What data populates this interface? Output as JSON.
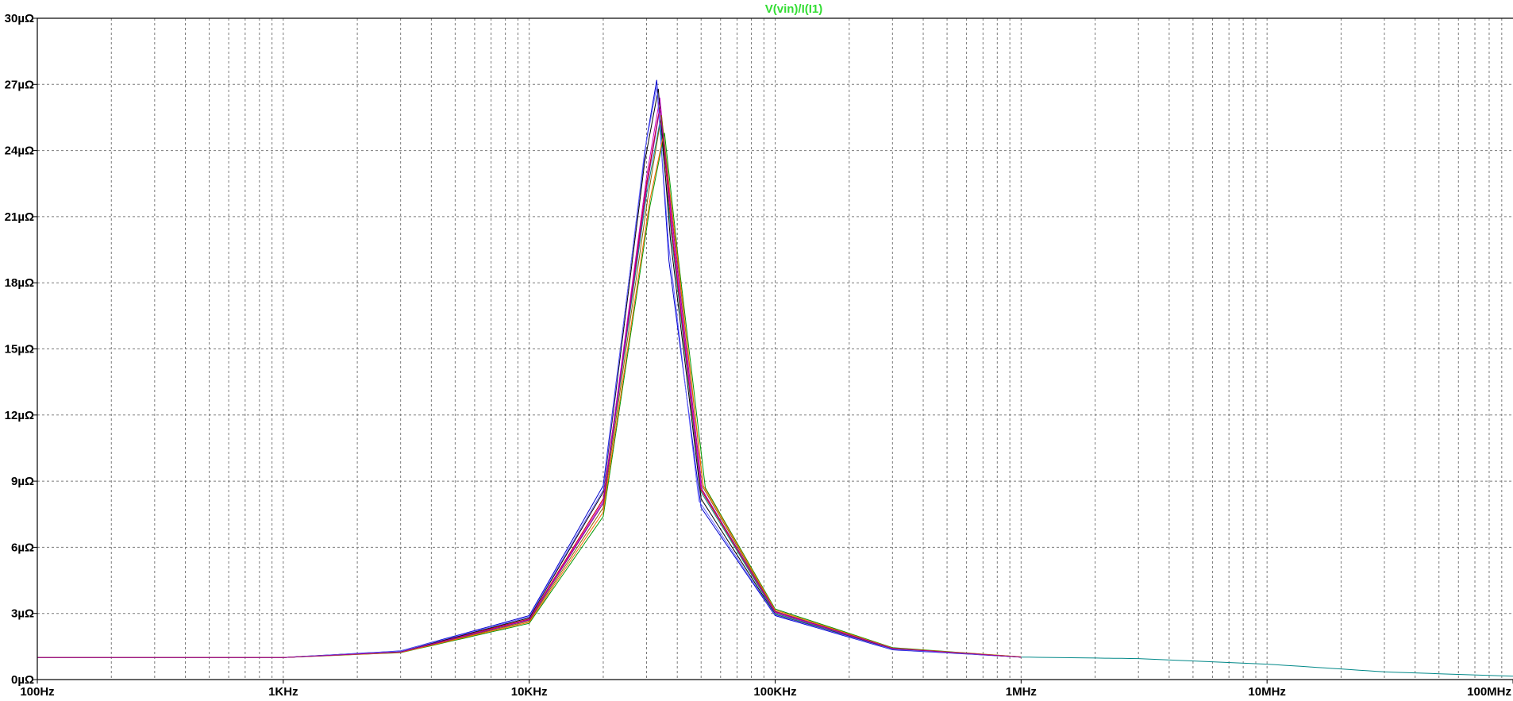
{
  "chart_data": {
    "type": "line",
    "title": "V(vin)/I(I1)",
    "x_scale": "log",
    "xlim": [
      100,
      100000000
    ],
    "ylim": [
      0,
      30
    ],
    "y_unit": "µΩ",
    "x_ticks": [
      {
        "value": 100,
        "label": "100Hz"
      },
      {
        "value": 1000,
        "label": "1KHz"
      },
      {
        "value": 10000,
        "label": "10KHz"
      },
      {
        "value": 100000,
        "label": "100KHz"
      },
      {
        "value": 1000000,
        "label": "1MHz"
      },
      {
        "value": 10000000,
        "label": "10MHz"
      },
      {
        "value": 100000000,
        "label": "100MHz"
      }
    ],
    "y_ticks": [
      {
        "value": 0,
        "label": "0µΩ"
      },
      {
        "value": 3,
        "label": "3µΩ"
      },
      {
        "value": 6,
        "label": "6µΩ"
      },
      {
        "value": 9,
        "label": "9µΩ"
      },
      {
        "value": 12,
        "label": "12µΩ"
      },
      {
        "value": 15,
        "label": "15µΩ"
      },
      {
        "value": 18,
        "label": "18µΩ"
      },
      {
        "value": 21,
        "label": "21µΩ"
      },
      {
        "value": 24,
        "label": "24µΩ"
      },
      {
        "value": 27,
        "label": "27µΩ"
      },
      {
        "value": 30,
        "label": "30µΩ"
      }
    ],
    "grid": true,
    "title_color": "#33dd33",
    "colors": [
      "#0000cc",
      "#cc0000",
      "#009900",
      "#cc00cc",
      "#008888",
      "#886600",
      "#000000",
      "#6666ff",
      "#ff6600",
      "#990099"
    ],
    "series": [
      {
        "color": "#008888",
        "x": [
          100,
          1000,
          3000,
          10000,
          20000,
          30000,
          34000,
          38000,
          50000,
          100000,
          300000,
          1000000,
          3000000,
          10000000,
          30000000,
          100000000
        ],
        "y": [
          1.0,
          1.0,
          1.25,
          2.7,
          8.0,
          22.0,
          25.3,
          20.0,
          8.5,
          3.0,
          1.4,
          1.02,
          0.95,
          0.7,
          0.35,
          0.15
        ]
      },
      {
        "color": "#0000cc",
        "x": [
          100,
          1000,
          3000,
          10000,
          20000,
          30000,
          33000,
          37000,
          50000,
          100000,
          300000,
          1000000
        ],
        "y": [
          1.0,
          1.0,
          1.3,
          2.9,
          8.8,
          24.5,
          27.2,
          19.0,
          7.8,
          2.9,
          1.35,
          1.02
        ]
      },
      {
        "color": "#cc0000",
        "x": [
          100,
          1000,
          3000,
          10000,
          20000,
          30000,
          34000,
          38000,
          50000,
          100000,
          300000,
          1000000
        ],
        "y": [
          1.0,
          1.0,
          1.27,
          2.75,
          8.2,
          22.5,
          26.0,
          20.3,
          8.6,
          3.05,
          1.4,
          1.02
        ]
      },
      {
        "color": "#009900",
        "x": [
          100,
          1000,
          3000,
          10000,
          20000,
          31000,
          35500,
          40000,
          52000,
          100000,
          300000,
          1000000
        ],
        "y": [
          1.0,
          1.0,
          1.22,
          2.55,
          7.4,
          21.5,
          24.8,
          19.5,
          8.7,
          3.2,
          1.45,
          1.03
        ]
      },
      {
        "color": "#cc00cc",
        "x": [
          100,
          1000,
          3000,
          10000,
          20000,
          30000,
          34000,
          38000,
          50000,
          100000,
          300000,
          1000000
        ],
        "y": [
          1.0,
          1.0,
          1.26,
          2.72,
          8.1,
          22.8,
          26.4,
          20.6,
          8.7,
          3.05,
          1.4,
          1.02
        ]
      },
      {
        "color": "#886600",
        "x": [
          100,
          1000,
          3000,
          10000,
          20000,
          30500,
          34500,
          39000,
          51000,
          100000,
          300000,
          1000000
        ],
        "y": [
          1.0,
          1.0,
          1.24,
          2.65,
          7.8,
          22.0,
          25.6,
          20.2,
          8.7,
          3.1,
          1.42,
          1.02
        ]
      },
      {
        "color": "#000000",
        "x": [
          100,
          1000,
          3000,
          10000,
          20000,
          29500,
          33500,
          37500,
          50000,
          100000,
          300000,
          1000000
        ],
        "y": [
          1.0,
          1.0,
          1.28,
          2.8,
          8.5,
          23.5,
          26.8,
          20.0,
          8.2,
          2.95,
          1.38,
          1.02
        ]
      },
      {
        "color": "#6666ff",
        "x": [
          100,
          1000,
          3000,
          10000,
          20000,
          29500,
          33000,
          37000,
          49000,
          100000,
          300000,
          1000000
        ],
        "y": [
          1.0,
          1.0,
          1.29,
          2.85,
          8.6,
          24.0,
          26.9,
          19.6,
          8.1,
          2.93,
          1.37,
          1.02
        ]
      },
      {
        "color": "#ff6600",
        "x": [
          100,
          1000,
          3000,
          10000,
          20000,
          31000,
          35000,
          39500,
          51000,
          100000,
          300000,
          1000000
        ],
        "y": [
          1.0,
          1.0,
          1.23,
          2.6,
          7.6,
          21.8,
          24.6,
          19.8,
          8.8,
          3.15,
          1.43,
          1.03
        ]
      },
      {
        "color": "#990099",
        "x": [
          100,
          1000,
          3000,
          10000,
          20000,
          30000,
          34000,
          38500,
          50500,
          100000,
          300000,
          1000000
        ],
        "y": [
          1.0,
          1.0,
          1.25,
          2.7,
          8.0,
          22.3,
          25.9,
          20.4,
          8.6,
          3.08,
          1.41,
          1.02
        ]
      }
    ]
  }
}
